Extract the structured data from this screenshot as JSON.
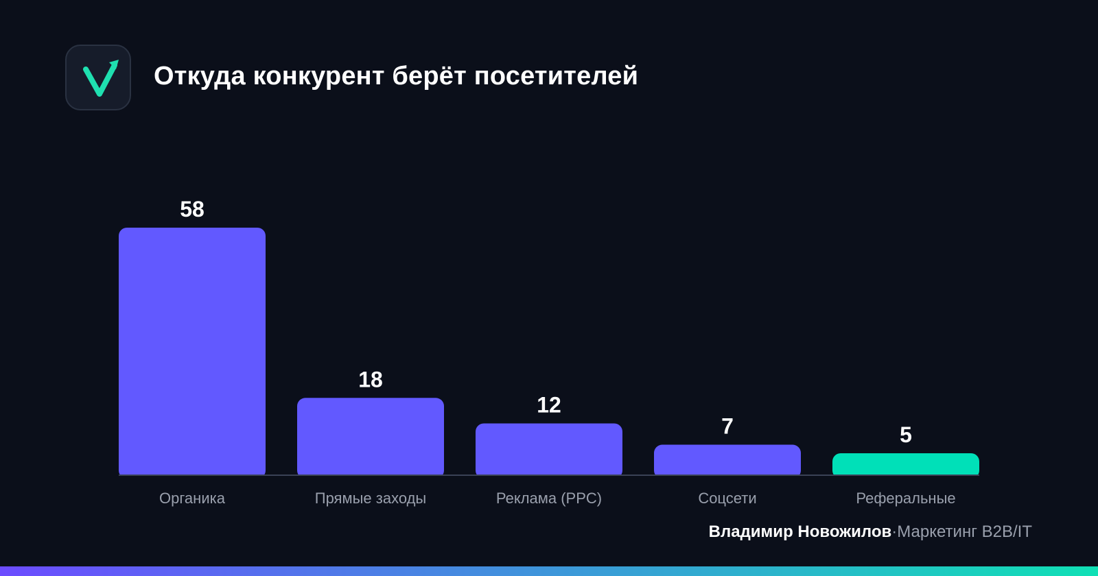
{
  "header": {
    "title": "Откуда конкурент берёт посетителей"
  },
  "footer": {
    "author": "Владимир Новожилов",
    "separator": "·",
    "subtitle": "Маркетинг B2B/IT"
  },
  "colors": {
    "background": "#0b0f1a",
    "bar_primary": "#6259ff",
    "bar_highlight": "#00e0b8",
    "axis": "#3a4256",
    "label": "#9aa0ad",
    "logo_accent": "#1fe0b0",
    "strip_start": "#6c4cff",
    "strip_end": "#10e0b5"
  },
  "icons": {
    "logo": "checkmark-arrow-icon"
  },
  "chart_data": {
    "type": "bar",
    "title": "Откуда конкурент берёт посетителей",
    "categories": [
      "Органика",
      "Прямые заходы",
      "Реклама (PPC)",
      "Соцсети",
      "Реферальные"
    ],
    "values": [
      58,
      18,
      12,
      7,
      5
    ],
    "data_labels": [
      "58",
      "18",
      "12",
      "7",
      "5"
    ],
    "highlight_index": 4,
    "ylim": [
      0,
      58
    ],
    "grid": false,
    "legend": "none"
  }
}
